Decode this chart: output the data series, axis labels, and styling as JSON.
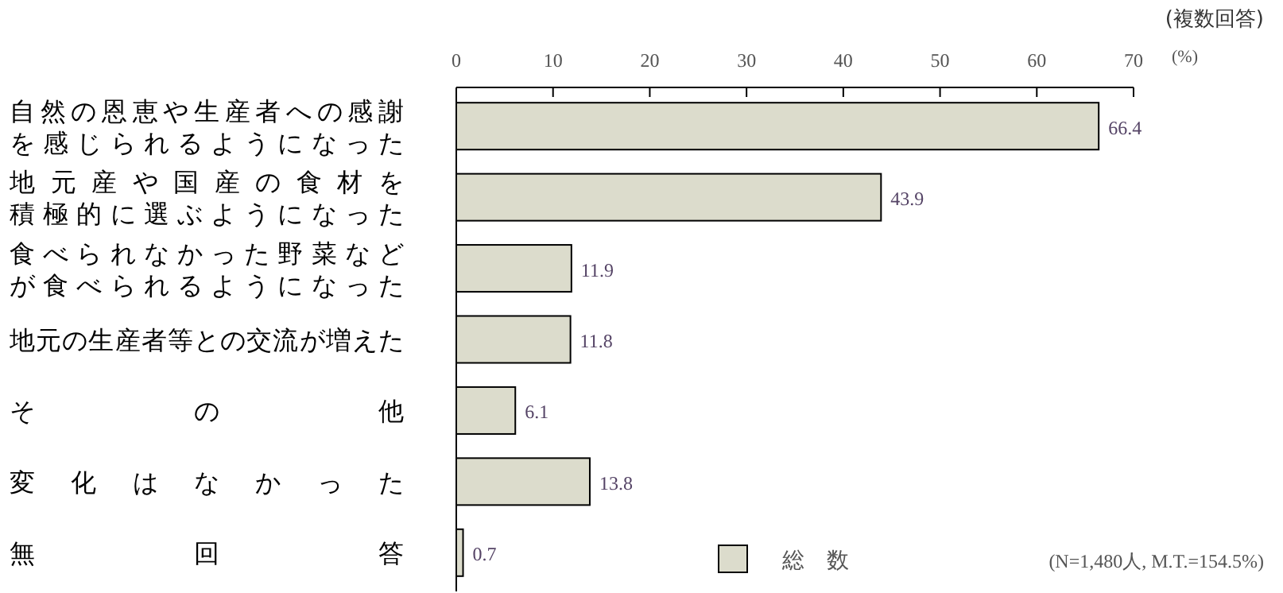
{
  "chart_data": {
    "type": "bar",
    "orientation": "horizontal",
    "categories": [
      "自然の恩恵や生産者への感謝を感じられるようになった",
      "地元産や国産の食材を積極的に選ぶようになった",
      "食べられなかった野菜などが食べられるようになった",
      "地元の生産者等との交流が増えた",
      "その他",
      "変化はなかった",
      "無回答"
    ],
    "series": [
      {
        "name": "総　数",
        "color": "#dcdccc",
        "values": [
          66.4,
          43.9,
          11.9,
          11.8,
          6.1,
          13.8,
          0.7
        ]
      }
    ],
    "xlim": [
      0,
      70
    ],
    "xticks": [
      0,
      10,
      20,
      30,
      40,
      50,
      60,
      70
    ],
    "xlabel": "(%)",
    "data_labels": true,
    "legend": "bottom right",
    "grid": false,
    "annotations": [
      "(複数回答)",
      "(N=1,480人, M.T.=154.5%)"
    ]
  }
}
